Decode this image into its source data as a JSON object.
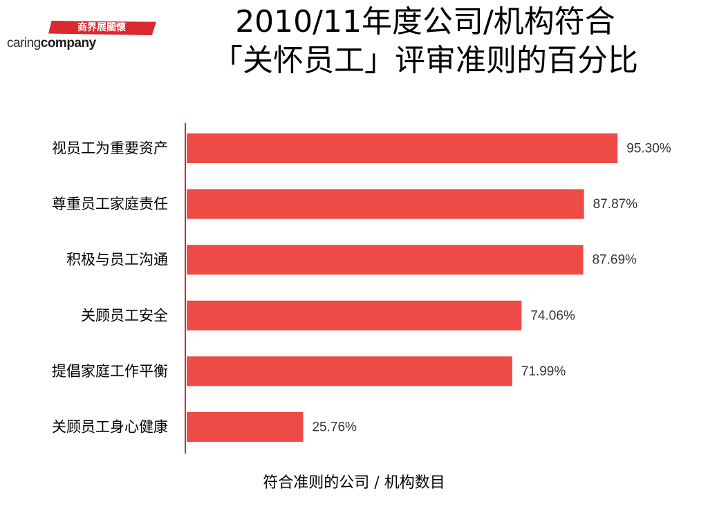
{
  "logo": {
    "chinese": "商界展關懷",
    "english_regular": "caring",
    "english_bold": "company"
  },
  "title": {
    "line1": "2010/11年度公司/机构符合",
    "line2": "「关怀员工」评审准则的百分比"
  },
  "chart_data": {
    "type": "bar",
    "orientation": "horizontal",
    "categories": [
      "视员工为重要资产",
      "尊重员工家庭责任",
      "积极与员工沟通",
      "关顾员工安全",
      "提倡家庭工作平衡",
      "关顾员工身心健康"
    ],
    "values": [
      95.3,
      87.87,
      87.69,
      74.06,
      71.99,
      25.76
    ],
    "value_labels": [
      "95.30%",
      "87.87%",
      "87.69%",
      "74.06%",
      "71.99%",
      "25.76%"
    ],
    "xlabel": "符合准则的公司 / 机构数目",
    "ylabel": "",
    "xlim": [
      0,
      100
    ],
    "bar_color": "#ee4b47",
    "axis_color": "#d9282f",
    "grid": false,
    "legend": "none"
  }
}
